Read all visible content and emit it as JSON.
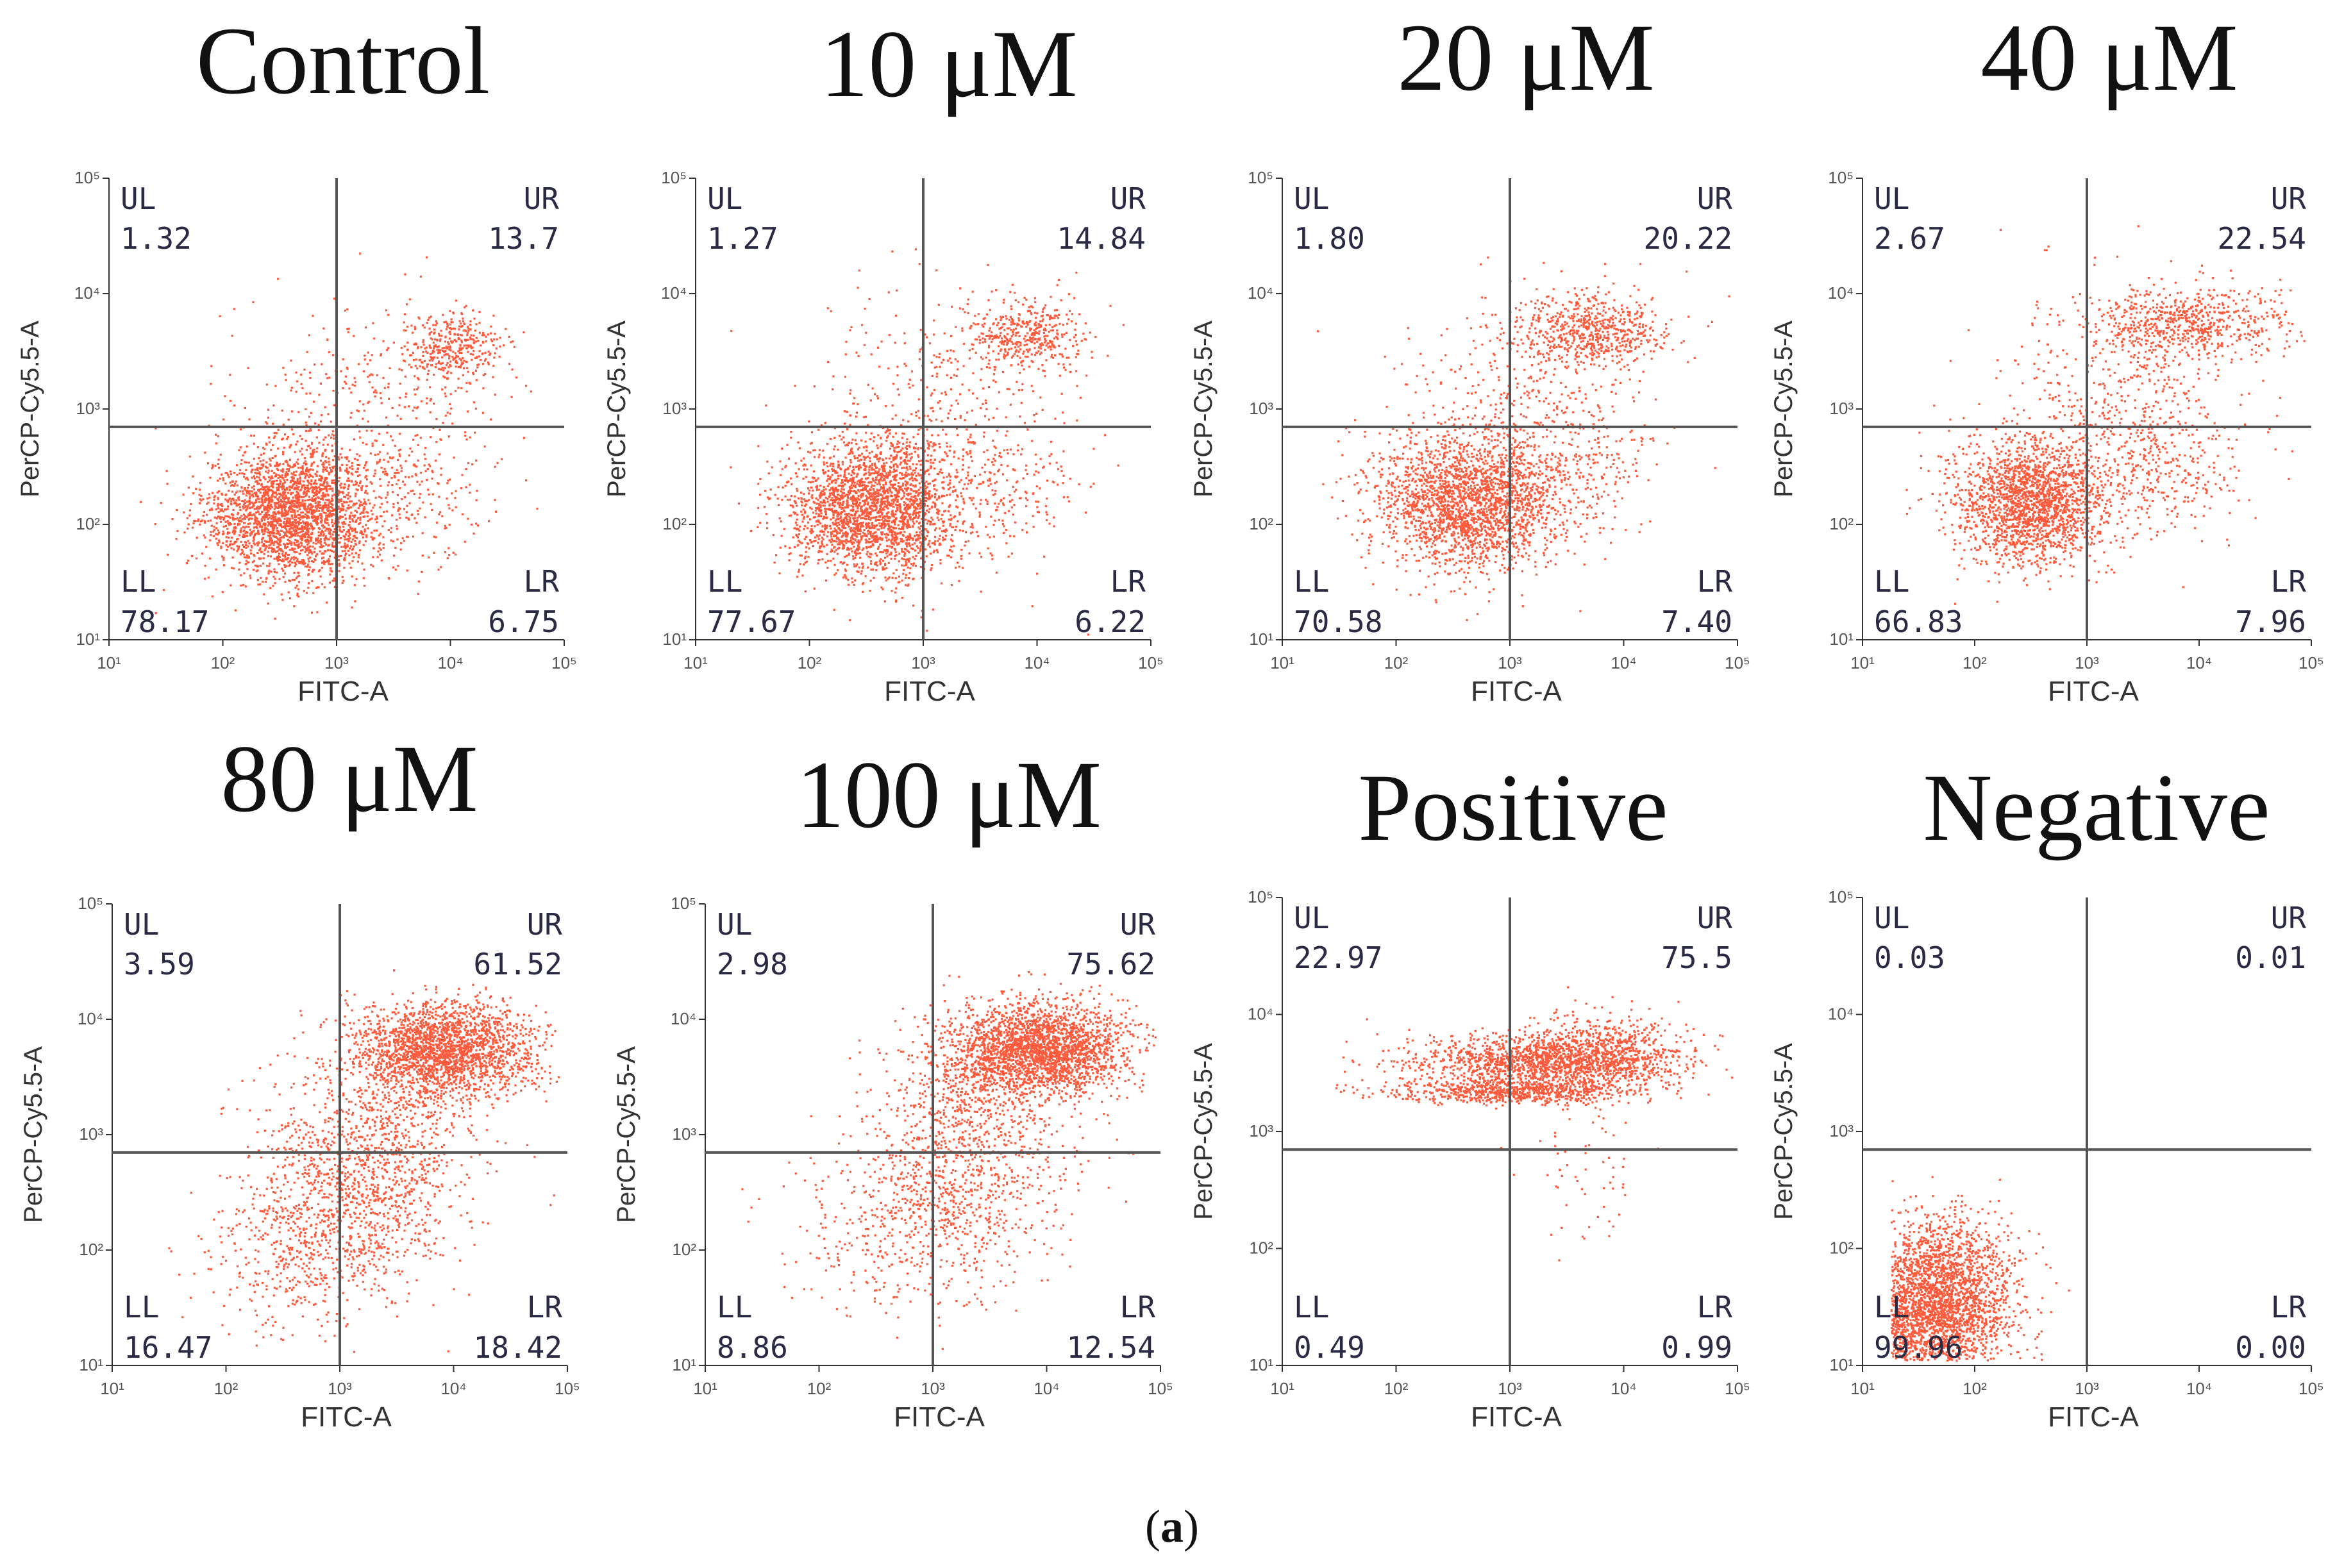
{
  "figure": {
    "caption_open": "(",
    "caption_letter": "a",
    "caption_close": ")"
  },
  "colors": {
    "dots": "#ff5a3c",
    "axis": "#333333",
    "quad_line": "#555555"
  },
  "chart_data": [
    {
      "type": "scatter",
      "title": "Control",
      "xlabel": "FITC-A",
      "ylabel": "PerCP-Cy5.5-A",
      "x_scale": "log",
      "y_scale": "log",
      "xlim": [
        10,
        100000
      ],
      "ylim": [
        10,
        100000
      ],
      "x_ticks": [
        "10¹",
        "10²",
        "10³",
        "10⁴",
        "10⁵"
      ],
      "y_ticks": [
        "10¹",
        "10²",
        "10³",
        "10⁴",
        "10⁵"
      ],
      "gate_x": 1000,
      "gate_y": 700,
      "quadrants": {
        "UL": 1.32,
        "UR": 13.7,
        "LL": 78.17,
        "LR": 6.75
      },
      "quadrant_text": {
        "UL": "1.32",
        "UR": "13.7",
        "LL": "78.17",
        "LR": "6.75"
      }
    },
    {
      "type": "scatter",
      "title": "10 μM",
      "xlabel": "FITC-A",
      "ylabel": "PerCP-Cy5.5-A",
      "x_scale": "log",
      "y_scale": "log",
      "xlim": [
        10,
        100000
      ],
      "ylim": [
        10,
        100000
      ],
      "x_ticks": [
        "10¹",
        "10²",
        "10³",
        "10⁴",
        "10⁵"
      ],
      "y_ticks": [
        "10¹",
        "10²",
        "10³",
        "10⁴",
        "10⁵"
      ],
      "gate_x": 1000,
      "gate_y": 700,
      "quadrants": {
        "UL": 1.27,
        "UR": 14.84,
        "LL": 77.67,
        "LR": 6.22
      },
      "quadrant_text": {
        "UL": "1.27",
        "UR": "14.84",
        "LL": "77.67",
        "LR": "6.22"
      }
    },
    {
      "type": "scatter",
      "title": "20 μM",
      "xlabel": "FITC-A",
      "ylabel": "PerCP-Cy5.5-A",
      "x_scale": "log",
      "y_scale": "log",
      "xlim": [
        10,
        100000
      ],
      "ylim": [
        10,
        100000
      ],
      "x_ticks": [
        "10¹",
        "10²",
        "10³",
        "10⁴",
        "10⁵"
      ],
      "y_ticks": [
        "10¹",
        "10²",
        "10³",
        "10⁴",
        "10⁵"
      ],
      "gate_x": 1000,
      "gate_y": 700,
      "quadrants": {
        "UL": 1.8,
        "UR": 20.22,
        "LL": 70.58,
        "LR": 7.4
      },
      "quadrant_text": {
        "UL": "1.80",
        "UR": "20.22",
        "LL": "70.58",
        "LR": "7.40"
      }
    },
    {
      "type": "scatter",
      "title": "40 μM",
      "xlabel": "FITC-A",
      "ylabel": "PerCP-Cy5.5-A",
      "x_scale": "log",
      "y_scale": "log",
      "xlim": [
        10,
        100000
      ],
      "ylim": [
        10,
        100000
      ],
      "x_ticks": [
        "10¹",
        "10²",
        "10³",
        "10⁴",
        "10⁵"
      ],
      "y_ticks": [
        "10¹",
        "10²",
        "10³",
        "10⁴",
        "10⁵"
      ],
      "gate_x": 1000,
      "gate_y": 700,
      "quadrants": {
        "UL": 2.67,
        "UR": 22.54,
        "LL": 66.83,
        "LR": 7.96
      },
      "quadrant_text": {
        "UL": "2.67",
        "UR": "22.54",
        "LL": "66.83",
        "LR": "7.96"
      }
    },
    {
      "type": "scatter",
      "title": "80 μM",
      "xlabel": "FITC-A",
      "ylabel": "PerCP-Cy5.5-A",
      "x_scale": "log",
      "y_scale": "log",
      "xlim": [
        10,
        100000
      ],
      "ylim": [
        10,
        100000
      ],
      "x_ticks": [
        "10¹",
        "10²",
        "10³",
        "10⁴",
        "10⁵"
      ],
      "y_ticks": [
        "10¹",
        "10²",
        "10³",
        "10⁴",
        "10⁵"
      ],
      "gate_x": 1000,
      "gate_y": 700,
      "quadrants": {
        "UL": 3.59,
        "UR": 61.52,
        "LL": 16.47,
        "LR": 18.42
      },
      "quadrant_text": {
        "UL": "3.59",
        "UR": "61.52",
        "LL": "16.47",
        "LR": "18.42"
      }
    },
    {
      "type": "scatter",
      "title": "100 μM",
      "xlabel": "FITC-A",
      "ylabel": "PerCP-Cy5.5-A",
      "x_scale": "log",
      "y_scale": "log",
      "xlim": [
        10,
        100000
      ],
      "ylim": [
        10,
        100000
      ],
      "x_ticks": [
        "10¹",
        "10²",
        "10³",
        "10⁴",
        "10⁵"
      ],
      "y_ticks": [
        "10¹",
        "10²",
        "10³",
        "10⁴",
        "10⁵"
      ],
      "gate_x": 1000,
      "gate_y": 700,
      "quadrants": {
        "UL": 2.98,
        "UR": 75.62,
        "LL": 8.86,
        "LR": 12.54
      },
      "quadrant_text": {
        "UL": "2.98",
        "UR": "75.62",
        "LL": "8.86",
        "LR": "12.54"
      }
    },
    {
      "type": "scatter",
      "title": "Positive",
      "xlabel": "FITC-A",
      "ylabel": "PerCP-Cy5.5-A",
      "x_scale": "log",
      "y_scale": "log",
      "xlim": [
        10,
        100000
      ],
      "ylim": [
        10,
        100000
      ],
      "x_ticks": [
        "10¹",
        "10²",
        "10³",
        "10⁴",
        "10⁵"
      ],
      "y_ticks": [
        "10¹",
        "10²",
        "10³",
        "10⁴",
        "10⁵"
      ],
      "gate_x": 1000,
      "gate_y": 700,
      "quadrants": {
        "UL": 22.97,
        "UR": 75.5,
        "LL": 0.49,
        "LR": 0.99
      },
      "quadrant_text": {
        "UL": "22.97",
        "UR": "75.5",
        "LL": "0.49",
        "LR": "0.99"
      }
    },
    {
      "type": "scatter",
      "title": "Negative",
      "xlabel": "FITC-A",
      "ylabel": "PerCP-Cy5.5-A",
      "x_scale": "log",
      "y_scale": "log",
      "xlim": [
        10,
        100000
      ],
      "ylim": [
        10,
        100000
      ],
      "x_ticks": [
        "10¹",
        "10²",
        "10³",
        "10⁴",
        "10⁵"
      ],
      "y_ticks": [
        "10¹",
        "10²",
        "10³",
        "10⁴",
        "10⁵"
      ],
      "gate_x": 1000,
      "gate_y": 700,
      "quadrants": {
        "UL": 0.03,
        "UR": 0.01,
        "LL": 99.96,
        "LR": 0.0
      },
      "quadrant_text": {
        "UL": "0.03",
        "UR": "0.01",
        "LL": "99.96",
        "LR": "0.00"
      }
    }
  ]
}
